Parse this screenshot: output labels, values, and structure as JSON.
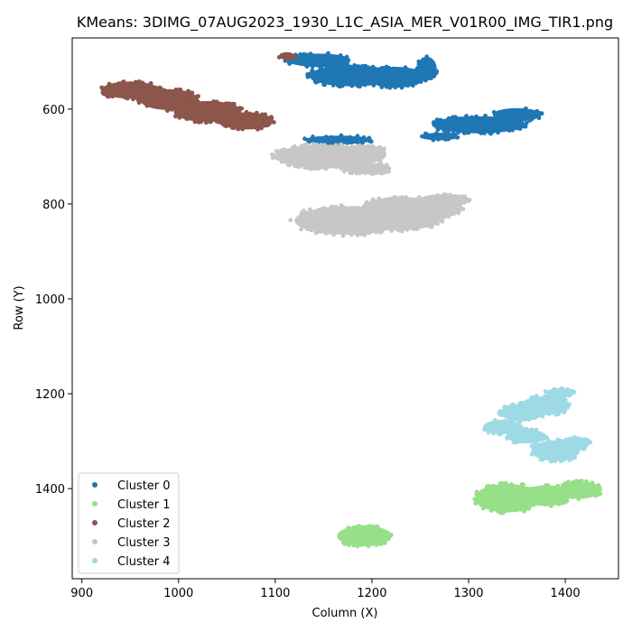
{
  "chart_data": {
    "type": "scatter",
    "title": "KMeans: 3DIMG_07AUG2023_1930_L1C_ASIA_MER_V01R00_IMG_TIR1.png",
    "xlabel": "Column (X)",
    "ylabel": "Row (Y)",
    "xlim": [
      890,
      1455
    ],
    "ylim": [
      1590,
      450
    ],
    "y_inverted": true,
    "grid": false,
    "legend_position": "lower-left",
    "x_ticks": [
      900,
      1000,
      1100,
      1200,
      1300,
      1400
    ],
    "y_ticks": [
      600,
      800,
      1000,
      1200,
      1400
    ],
    "series": [
      {
        "name": "Cluster 0",
        "color": "#1f77b4",
        "regions": [
          {
            "cx": 1145,
            "cy": 497,
            "rx": 33,
            "ry": 14
          },
          {
            "cx": 1180,
            "cy": 530,
            "rx": 45,
            "ry": 22
          },
          {
            "cx": 1225,
            "cy": 533,
            "rx": 30,
            "ry": 22
          },
          {
            "cx": 1257,
            "cy": 515,
            "rx": 10,
            "ry": 25
          },
          {
            "cx": 1310,
            "cy": 633,
            "rx": 48,
            "ry": 18
          },
          {
            "cx": 1350,
            "cy": 612,
            "rx": 25,
            "ry": 14
          },
          {
            "cx": 1270,
            "cy": 658,
            "rx": 20,
            "ry": 8
          },
          {
            "cx": 1165,
            "cy": 665,
            "rx": 35,
            "ry": 9
          }
        ]
      },
      {
        "name": "Cluster 1",
        "color": "#98df8a",
        "regions": [
          {
            "cx": 1192,
            "cy": 1500,
            "rx": 28,
            "ry": 22
          },
          {
            "cx": 1340,
            "cy": 1420,
            "rx": 33,
            "ry": 30
          },
          {
            "cx": 1380,
            "cy": 1415,
            "rx": 25,
            "ry": 22
          },
          {
            "cx": 1415,
            "cy": 1403,
            "rx": 22,
            "ry": 18
          }
        ]
      },
      {
        "name": "Cluster 2",
        "color": "#8c564b",
        "regions": [
          {
            "cx": 950,
            "cy": 560,
            "rx": 30,
            "ry": 18
          },
          {
            "cx": 990,
            "cy": 580,
            "rx": 30,
            "ry": 22
          },
          {
            "cx": 1030,
            "cy": 605,
            "rx": 35,
            "ry": 22
          },
          {
            "cx": 1070,
            "cy": 625,
            "rx": 28,
            "ry": 18
          },
          {
            "cx": 1112,
            "cy": 488,
            "rx": 8,
            "ry": 8
          }
        ]
      },
      {
        "name": "Cluster 3",
        "color": "#c7c7c7",
        "regions": [
          {
            "cx": 1150,
            "cy": 700,
            "rx": 50,
            "ry": 25
          },
          {
            "cx": 1190,
            "cy": 695,
            "rx": 25,
            "ry": 20
          },
          {
            "cx": 1195,
            "cy": 725,
            "rx": 25,
            "ry": 12
          },
          {
            "cx": 1175,
            "cy": 835,
            "rx": 55,
            "ry": 30
          },
          {
            "cx": 1230,
            "cy": 820,
            "rx": 45,
            "ry": 35
          },
          {
            "cx": 1268,
            "cy": 805,
            "rx": 25,
            "ry": 25
          },
          {
            "cx": 1285,
            "cy": 790,
            "rx": 15,
            "ry": 10
          }
        ]
      },
      {
        "name": "Cluster 4",
        "color": "#9edae5",
        "regions": [
          {
            "cx": 1355,
            "cy": 1240,
            "rx": 22,
            "ry": 18
          },
          {
            "cx": 1380,
            "cy": 1225,
            "rx": 25,
            "ry": 20
          },
          {
            "cx": 1395,
            "cy": 1198,
            "rx": 15,
            "ry": 10
          },
          {
            "cx": 1335,
            "cy": 1270,
            "rx": 20,
            "ry": 15
          },
          {
            "cx": 1360,
            "cy": 1290,
            "rx": 20,
            "ry": 15
          },
          {
            "cx": 1390,
            "cy": 1320,
            "rx": 25,
            "ry": 22
          },
          {
            "cx": 1410,
            "cy": 1305,
            "rx": 15,
            "ry": 15
          }
        ]
      }
    ]
  }
}
